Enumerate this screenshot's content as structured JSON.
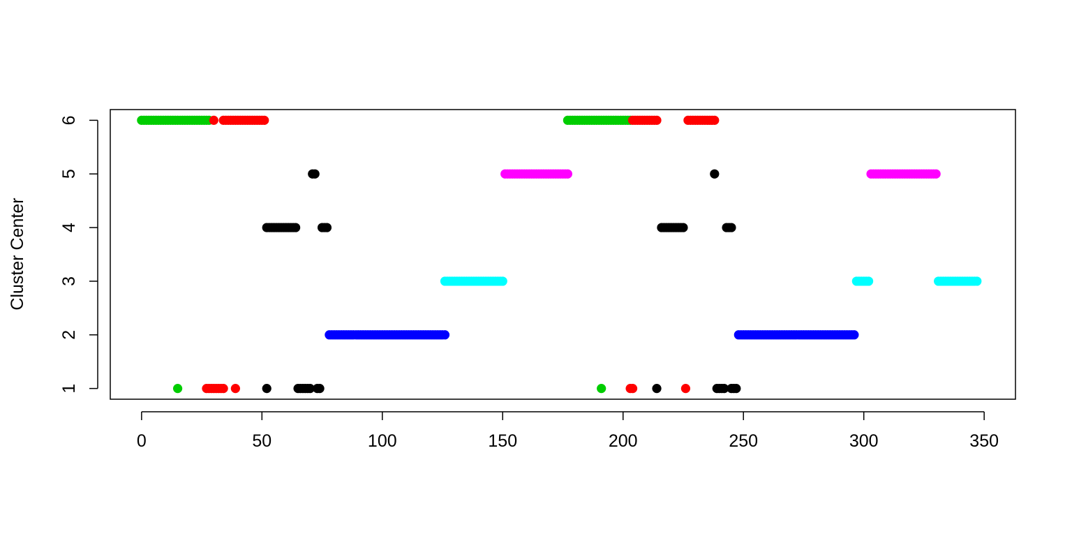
{
  "chart_data": {
    "type": "scatter",
    "title": "",
    "xlabel": "",
    "ylabel": "Cluster Center",
    "xlim": [
      -13,
      363
    ],
    "ylim": [
      0.8,
      6.2
    ],
    "x_ticks": [
      0,
      50,
      100,
      150,
      200,
      250,
      300,
      350
    ],
    "y_ticks": [
      1,
      2,
      3,
      4,
      5,
      6
    ],
    "grid": false,
    "colors": {
      "green": "#00cd00",
      "red": "#ff0000",
      "black": "#000000",
      "blue": "#0000ff",
      "cyan": "#00ffff",
      "magenta": "#ff00ff"
    },
    "runs": [
      {
        "color": "green",
        "y": 6,
        "x_start": 0,
        "x_end": 28
      },
      {
        "color": "red",
        "y": 6,
        "x_start": 30,
        "x_end": 30
      },
      {
        "color": "red",
        "y": 6,
        "x_start": 34,
        "x_end": 51
      },
      {
        "color": "black",
        "y": 5,
        "x_start": 71,
        "x_end": 72
      },
      {
        "color": "black",
        "y": 4,
        "x_start": 52,
        "x_end": 64
      },
      {
        "color": "black",
        "y": 4,
        "x_start": 75,
        "x_end": 77
      },
      {
        "color": "green",
        "y": 1,
        "x_start": 15,
        "x_end": 15
      },
      {
        "color": "red",
        "y": 1,
        "x_start": 27,
        "x_end": 34
      },
      {
        "color": "red",
        "y": 1,
        "x_start": 39,
        "x_end": 39
      },
      {
        "color": "black",
        "y": 1,
        "x_start": 52,
        "x_end": 52
      },
      {
        "color": "black",
        "y": 1,
        "x_start": 65,
        "x_end": 70
      },
      {
        "color": "black",
        "y": 1,
        "x_start": 73,
        "x_end": 74
      },
      {
        "color": "blue",
        "y": 2,
        "x_start": 78,
        "x_end": 126
      },
      {
        "color": "cyan",
        "y": 3,
        "x_start": 126,
        "x_end": 150
      },
      {
        "color": "magenta",
        "y": 5,
        "x_start": 151,
        "x_end": 177
      },
      {
        "color": "green",
        "y": 6,
        "x_start": 177,
        "x_end": 203
      },
      {
        "color": "red",
        "y": 6,
        "x_start": 204,
        "x_end": 214
      },
      {
        "color": "red",
        "y": 6,
        "x_start": 227,
        "x_end": 238
      },
      {
        "color": "black",
        "y": 5,
        "x_start": 238,
        "x_end": 238
      },
      {
        "color": "black",
        "y": 4,
        "x_start": 216,
        "x_end": 225
      },
      {
        "color": "black",
        "y": 4,
        "x_start": 243,
        "x_end": 245
      },
      {
        "color": "green",
        "y": 1,
        "x_start": 191,
        "x_end": 191
      },
      {
        "color": "red",
        "y": 1,
        "x_start": 203,
        "x_end": 204
      },
      {
        "color": "black",
        "y": 1,
        "x_start": 214,
        "x_end": 214
      },
      {
        "color": "red",
        "y": 1,
        "x_start": 226,
        "x_end": 226
      },
      {
        "color": "black",
        "y": 1,
        "x_start": 239,
        "x_end": 242
      },
      {
        "color": "black",
        "y": 1,
        "x_start": 245,
        "x_end": 247
      },
      {
        "color": "blue",
        "y": 2,
        "x_start": 248,
        "x_end": 296
      },
      {
        "color": "cyan",
        "y": 3,
        "x_start": 297,
        "x_end": 302
      },
      {
        "color": "magenta",
        "y": 5,
        "x_start": 303,
        "x_end": 330
      },
      {
        "color": "cyan",
        "y": 3,
        "x_start": 331,
        "x_end": 347
      }
    ]
  }
}
